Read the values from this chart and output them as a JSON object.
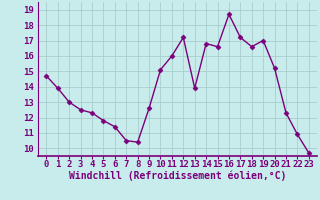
{
  "x": [
    0,
    1,
    2,
    3,
    4,
    5,
    6,
    7,
    8,
    9,
    10,
    11,
    12,
    13,
    14,
    15,
    16,
    17,
    18,
    19,
    20,
    21,
    22,
    23
  ],
  "y": [
    14.7,
    13.9,
    13.0,
    12.5,
    12.3,
    11.8,
    11.4,
    10.5,
    10.4,
    12.6,
    15.1,
    16.0,
    17.2,
    13.9,
    16.8,
    16.6,
    18.7,
    17.2,
    16.6,
    17.0,
    15.2,
    12.3,
    10.9,
    9.7
  ],
  "line_color": "#7B007B",
  "marker": "D",
  "marker_size": 2.5,
  "line_width": 1.0,
  "bg_color": "#c8ecec",
  "grid_color": "#aacccc",
  "xlabel": "Windchill (Refroidissement éolien,°C)",
  "xlabel_fontsize": 7,
  "tick_fontsize": 6.5,
  "ylim": [
    9.5,
    19.5
  ],
  "yticks": [
    10,
    11,
    12,
    13,
    14,
    15,
    16,
    17,
    18,
    19
  ],
  "xticks": [
    0,
    1,
    2,
    3,
    4,
    5,
    6,
    7,
    8,
    9,
    10,
    11,
    12,
    13,
    14,
    15,
    16,
    17,
    18,
    19,
    20,
    21,
    22,
    23
  ]
}
